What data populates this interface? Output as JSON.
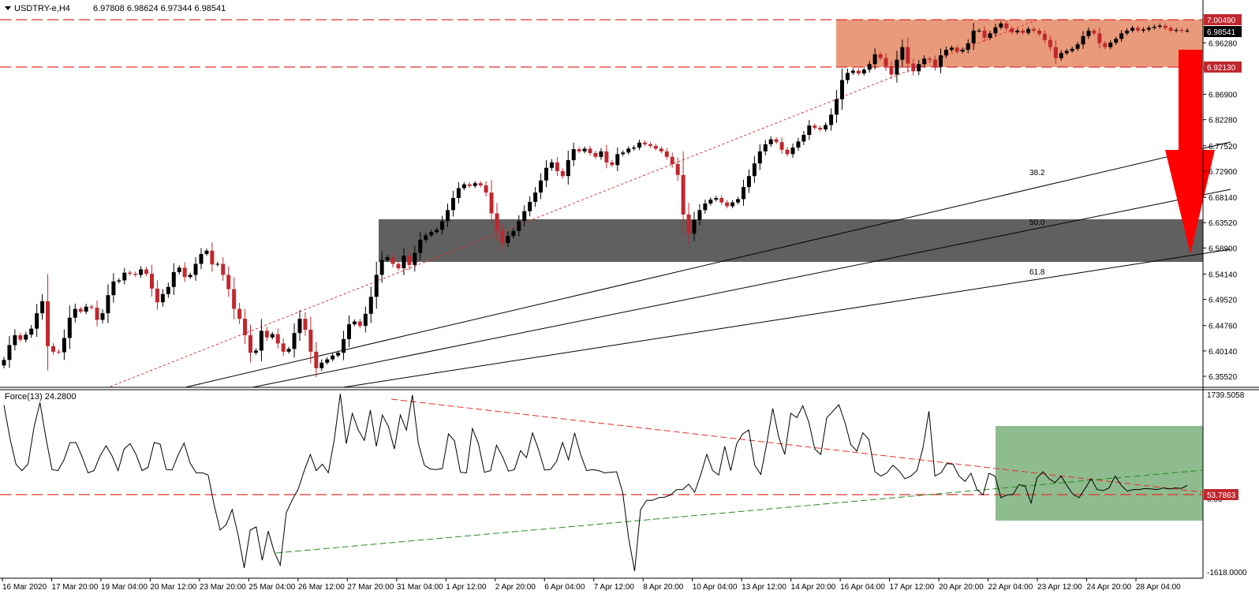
{
  "header": {
    "symbol_label": "USDTRY-e,H4",
    "ohlc_label": "6.97808 6.98624 6.97344 6.98541"
  },
  "indicator": {
    "label": "Force(13) 24.2800",
    "scale_max": "1739.5058",
    "scale_min": "-1618.0000",
    "level_tag": "53.7863",
    "zero_label": "0.00",
    "level_value": 53.7863
  },
  "fib_labels": {
    "f382": "38.2",
    "f500": "50.0",
    "f618": "61.8"
  },
  "price_tags": {
    "resistance_upper": "7.00490",
    "current": "6.98541",
    "resistance_lower": "6.92130"
  },
  "colors": {
    "bull_candle": "#000000",
    "bear_candle": "#c0282e",
    "resistance_zone": "#e99a7b",
    "support_zone": "#606060",
    "indicator_zone": "#8fbc8f",
    "arrow": "#ff0000",
    "level_line": "#e0302e",
    "uptrend_line": "#228b22"
  },
  "chart_data": {
    "type": "candlestick",
    "symbol": "USDTRY-e",
    "timeframe": "H4",
    "price_ticks": [
      "6.35520",
      "6.40140",
      "6.44760",
      "6.49520",
      "6.54140",
      "6.58900",
      "6.63520",
      "6.68140",
      "6.72900",
      "6.77520",
      "6.82280",
      "6.86900",
      "6.91520",
      "6.96280"
    ],
    "ylim": [
      6.35,
      7.015
    ],
    "x_ticks": [
      "16 Mar 2020",
      "17 Mar 20:00",
      "19 Mar 04:00",
      "20 Mar 12:00",
      "23 Mar 20:00",
      "25 Mar 04:00",
      "26 Mar 12:00",
      "27 Mar 20:00",
      "31 Mar 04:00",
      "1 Apr 12:00",
      "2 Apr 20:00",
      "6 Apr 04:00",
      "7 Apr 12:00",
      "8 Apr 20:00",
      "10 Apr 04:00",
      "13 Apr 12:00",
      "14 Apr 20:00",
      "16 Apr 04:00",
      "17 Apr 12:00",
      "20 Apr 20:00",
      "22 Apr 04:00",
      "23 Apr 12:00",
      "24 Apr 20:00",
      "28 Apr 04:00"
    ],
    "resistance_zone": [
      6.9213,
      7.0049
    ],
    "support_zone": [
      6.573,
      6.645
    ],
    "fibonacci_levels": [
      "38.2",
      "50.0",
      "61.8"
    ],
    "closes": [
      6.385,
      6.412,
      6.43,
      6.422,
      6.431,
      6.442,
      6.47,
      6.492,
      6.41,
      6.4,
      6.399,
      6.425,
      6.462,
      6.478,
      6.473,
      6.482,
      6.48,
      6.458,
      6.47,
      6.503,
      6.528,
      6.53,
      6.544,
      6.542,
      6.54,
      6.55,
      6.542,
      6.515,
      6.49,
      6.505,
      6.518,
      6.545,
      6.553,
      6.536,
      6.54,
      6.56,
      6.578,
      6.584,
      6.559,
      6.56,
      6.54,
      6.514,
      6.478,
      6.46,
      6.43,
      6.398,
      6.402,
      6.438,
      6.426,
      6.432,
      6.415,
      6.4,
      6.405,
      6.434,
      6.46,
      6.44,
      6.4,
      6.37,
      6.38,
      6.386,
      6.393,
      6.398,
      6.423,
      6.45,
      6.455,
      6.447,
      6.469,
      6.5,
      6.54,
      6.567,
      6.572,
      6.56,
      6.552,
      6.575,
      6.558,
      6.58,
      6.604,
      6.612,
      6.618,
      6.622,
      6.638,
      6.658,
      6.68,
      6.698,
      6.705,
      6.702,
      6.707,
      6.703,
      6.69,
      6.652,
      6.62,
      6.598,
      6.611,
      6.62,
      6.638,
      6.656,
      6.673,
      6.69,
      6.712,
      6.735,
      6.745,
      6.729,
      6.72,
      6.749,
      6.769,
      6.765,
      6.77,
      6.762,
      6.755,
      6.765,
      6.745,
      6.74,
      6.76,
      6.763,
      6.77,
      6.772,
      6.781,
      6.778,
      6.775,
      6.77,
      6.765,
      6.755,
      6.742,
      6.722,
      6.65,
      6.615,
      6.64,
      6.658,
      6.67,
      6.677,
      6.68,
      6.672,
      6.665,
      6.672,
      6.678,
      6.7,
      6.72,
      6.743,
      6.765,
      6.778,
      6.787,
      6.782,
      6.768,
      6.76,
      6.772,
      6.783,
      6.795,
      6.812,
      6.808,
      6.805,
      6.813,
      6.832,
      6.86,
      6.895,
      6.908,
      6.912,
      6.907,
      6.914,
      6.924,
      6.942,
      6.935,
      6.92,
      6.905,
      6.932,
      6.955,
      6.925,
      6.911,
      6.924,
      6.934,
      6.932,
      6.919,
      6.94,
      6.95,
      6.954,
      6.947,
      6.95,
      6.962,
      6.985,
      6.985,
      6.972,
      6.98,
      6.991,
      6.998,
      6.989,
      6.982,
      6.985,
      6.981,
      6.988,
      6.985,
      6.979,
      6.968,
      6.955,
      6.935,
      6.944,
      6.948,
      6.952,
      6.96,
      6.975,
      6.985,
      6.98,
      6.962,
      6.955,
      6.963,
      6.97,
      6.98,
      6.985,
      6.99,
      6.985,
      6.987,
      6.99,
      6.992,
      6.994,
      6.99,
      6.985,
      6.986,
      6.985,
      6.985
    ],
    "force_values": [
      1510,
      900,
      420,
      300,
      420,
      1100,
      1560,
      900,
      320,
      300,
      500,
      820,
      820,
      560,
      260,
      300,
      570,
      760,
      570,
      300,
      700,
      800,
      600,
      300,
      360,
      820,
      790,
      320,
      310,
      590,
      810,
      440,
      260,
      260,
      220,
      -340,
      -800,
      -700,
      -420,
      -900,
      -1500,
      -800,
      -740,
      -1360,
      -820,
      -1200,
      -1450,
      -480,
      -240,
      -40,
      300,
      600,
      300,
      420,
      260,
      880,
      1720,
      800,
      1360,
      1050,
      860,
      1420,
      750,
      1330,
      1120,
      700,
      1330,
      1050,
      1700,
      800,
      400,
      330,
      320,
      340,
      980,
      850,
      270,
      260,
      1080,
      800,
      270,
      300,
      770,
      560,
      290,
      320,
      670,
      540,
      1000,
      690,
      310,
      320,
      470,
      820,
      500,
      1000,
      600,
      300,
      320,
      300,
      260,
      270,
      280,
      -100,
      -950,
      -1560,
      -420,
      -250,
      -250,
      -200,
      -190,
      -150,
      -50,
      -50,
      50,
      -100,
      220,
      600,
      300,
      220,
      750,
      300,
      800,
      980,
      1050,
      400,
      230,
      800,
      1450,
      920,
      600,
      1360,
      1280,
      1500,
      1200,
      700,
      600,
      1280,
      1400,
      1520,
      1200,
      780,
      660,
      1000,
      880,
      280,
      200,
      260,
      400,
      300,
      150,
      200,
      300,
      720,
      1400,
      200,
      260,
      430,
      420,
      200,
      100,
      250,
      -50,
      -150,
      250,
      200,
      -200,
      -150,
      -140,
      40,
      20,
      -300,
      170,
      280,
      150,
      80,
      200,
      20,
      -140,
      -200,
      -30,
      150,
      -50,
      -70,
      -20,
      200,
      30,
      -80,
      -50,
      -50,
      -30,
      -40,
      -50,
      -20,
      -40,
      -20,
      -30,
      24.28
    ]
  }
}
